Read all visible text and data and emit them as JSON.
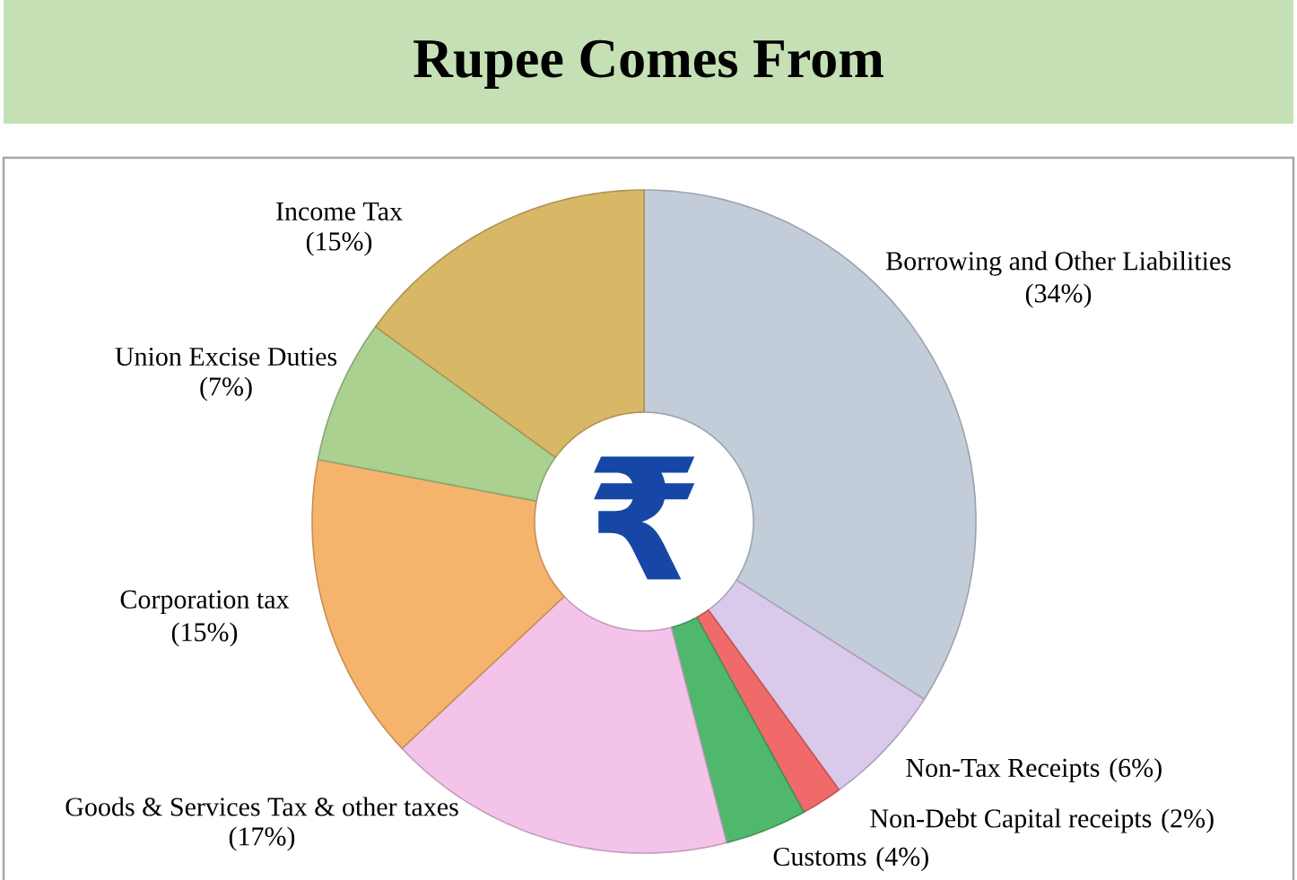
{
  "chart_data": {
    "type": "donut",
    "title": "Rupee Comes From",
    "categories": [
      "Borrowing and Other Liabilities",
      "Non-Tax Receipts",
      "Non-Debt Capital receipts",
      "Customs",
      "Goods & Services Tax & other taxes",
      "Corporation tax",
      "Union Excise Duties",
      "Income Tax"
    ],
    "values": [
      34,
      6,
      2,
      4,
      17,
      15,
      7,
      15
    ],
    "colors": [
      "#c3ccd9",
      "#d9c9ea",
      "#f06a6a",
      "#4fb86c",
      "#f4c3ea",
      "#f6b36c",
      "#aad18f",
      "#d8b866"
    ],
    "value_labels": [
      "(34%)",
      "(6%)",
      "(2%)",
      "(4%)",
      "(17%)",
      "(15%)",
      "(7%)",
      "(15%)"
    ],
    "annotations": [
      "₹"
    ]
  }
}
